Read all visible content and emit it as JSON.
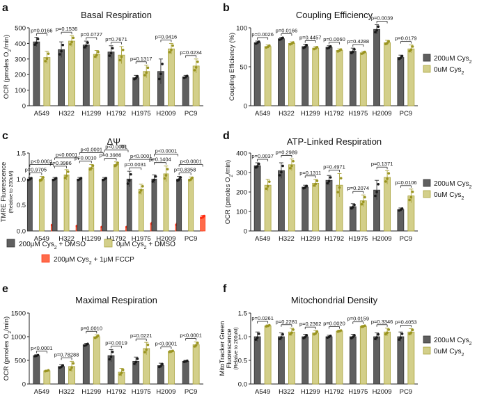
{
  "colors": {
    "cys200": "#5f5f5f",
    "cys0": "#d3cf8a",
    "cys0_stroke": "#a8a23a",
    "fccp": "#ff6b4a",
    "fccp_stroke": "#ff3a1a",
    "dot_cys200": "#1a1a1a",
    "dot_cys0": "#9a9420",
    "dot_fccp": "#ff2a10"
  },
  "categories": [
    "A549",
    "H322",
    "H1299",
    "H1792",
    "H1975",
    "H2009",
    "PC9"
  ],
  "chart_data": [
    {
      "panel": "a",
      "type": "bar",
      "title": "Basal Respiration",
      "ylabel_parts": [
        "OCR (pmoles O",
        "2",
        "/min)"
      ],
      "ylim": [
        0,
        500
      ],
      "yticks": [
        0,
        100,
        200,
        300,
        400,
        500
      ],
      "legend": false,
      "series": [
        {
          "name": "200μM Cys2",
          "values": [
            410,
            360,
            390,
            345,
            180,
            220,
            185
          ],
          "err": [
            30,
            50,
            25,
            40,
            15,
            80,
            10
          ]
        },
        {
          "name": "0μM Cys2",
          "values": [
            310,
            415,
            330,
            325,
            220,
            365,
            255
          ],
          "err": [
            40,
            35,
            25,
            55,
            40,
            35,
            45
          ]
        }
      ],
      "pvalues": [
        "p=0.0166",
        "p=0.1536",
        "p=0.0727",
        "p=0.7671",
        "p=0.1317",
        "p=0.0416",
        "p=0.0234"
      ]
    },
    {
      "panel": "b",
      "type": "bar",
      "title": "Coupling Efficiency",
      "ylabel_parts": [
        "Coupling Efficiency (%)"
      ],
      "ylim": [
        0,
        100
      ],
      "yticks": [
        0,
        50,
        100
      ],
      "legend": true,
      "series": [
        {
          "name": "200μM Cys2",
          "values": [
            81,
            86,
            76,
            75,
            70,
            98,
            62
          ],
          "err": [
            2,
            2,
            3,
            2,
            4,
            6,
            3
          ]
        },
        {
          "name": "0μM Cys2",
          "values": [
            76,
            80,
            74,
            71,
            68,
            81,
            73
          ],
          "err": [
            2,
            2,
            2,
            2,
            2,
            3,
            5
          ]
        }
      ],
      "pvalues": [
        "p=0.0026",
        "p=0.0166",
        "p=0.4457",
        "p=0.0060",
        "p=0.4288",
        "p=0.0039",
        "p=0.0179"
      ]
    },
    {
      "panel": "c",
      "type": "bar",
      "title": "ΔΨ",
      "title_sub": "m",
      "ylabel_parts": [
        "TMRE Fluorescence"
      ],
      "ylabel2": "(Relative to 200uM)",
      "ylim": [
        0,
        1.5
      ],
      "yticks": [
        0.0,
        0.5,
        1.0,
        1.5
      ],
      "legend": false,
      "series": [
        {
          "name": "200μM Cys2 + DMSO",
          "values": [
            1.0,
            1.0,
            1.0,
            1.0,
            1.0,
            1.0,
            1.0
          ],
          "err": [
            0.03,
            0.03,
            0.03,
            0.03,
            0.15,
            0.08,
            0.05
          ]
        },
        {
          "name": "0μM Cys2 + DMSO",
          "values": [
            1.0,
            1.08,
            1.22,
            1.28,
            0.8,
            1.1,
            1.0
          ],
          "err": [
            0.05,
            0.1,
            0.06,
            0.05,
            0.1,
            0.15,
            0.04
          ]
        },
        {
          "name": "200μM Cys2 + 1μM FCCP",
          "values": [
            0.12,
            0.1,
            0.08,
            0.08,
            0.15,
            0.13,
            0.27
          ],
          "err": [
            0.01,
            0.01,
            0.01,
            0.01,
            0.02,
            0.02,
            0.03
          ]
        }
      ],
      "pvalues_top": [
        "p<0.0001",
        "p<0.0001",
        "p<0.0001",
        "p<0.0001",
        "p<0.0001",
        "p<0.0001",
        "p<0.0001"
      ],
      "pvalues_bottom": [
        "p=0.9705",
        "p=0.3986",
        "p=0.0010",
        "p=0.3986",
        "p=0.0031",
        "p=0.1404",
        "p=0.8358"
      ]
    },
    {
      "panel": "d",
      "type": "bar",
      "title": "ATP-Linked Respiration",
      "ylabel_parts": [
        "OCR (pmoles O",
        "2",
        "/min)"
      ],
      "ylim": [
        0,
        400
      ],
      "yticks": [
        0,
        100,
        200,
        300,
        400
      ],
      "legend": true,
      "series": [
        {
          "name": "200μM Cys2",
          "values": [
            335,
            310,
            225,
            260,
            125,
            210,
            110
          ],
          "err": [
            15,
            40,
            10,
            25,
            15,
            50,
            8
          ]
        },
        {
          "name": "0μM Cys2",
          "values": [
            235,
            340,
            245,
            235,
            155,
            275,
            180
          ],
          "err": [
            30,
            30,
            20,
            60,
            30,
            35,
            35
          ]
        }
      ],
      "pvalues": [
        "p=0.0037",
        "p=0.2989",
        "p=0.1311",
        "p=0.4971",
        "p=0.2074",
        "p=0.1371",
        "p=0.0106"
      ]
    },
    {
      "panel": "e",
      "type": "bar",
      "title": "Maximal Respiration",
      "ylabel_parts": [
        "OCR (pmoles O",
        "2",
        "/min)"
      ],
      "ylim": [
        0,
        1500
      ],
      "yticks": [
        0,
        500,
        1000,
        1500
      ],
      "legend": false,
      "series": [
        {
          "name": "200μM Cys2",
          "values": [
            600,
            370,
            830,
            600,
            480,
            390,
            480
          ],
          "err": [
            20,
            40,
            30,
            130,
            90,
            50,
            20
          ]
        },
        {
          "name": "0μM Cys2",
          "values": [
            280,
            370,
            1000,
            250,
            750,
            690,
            830
          ],
          "err": [
            15,
            110,
            40,
            80,
            130,
            20,
            60
          ]
        }
      ],
      "pvalues": [
        "p<0.0001",
        "p=0.78288",
        "p=0.0010",
        "p=0.0019",
        "p=0.0221",
        "p<0.0001",
        "p<0.0001"
      ]
    },
    {
      "panel": "f",
      "type": "bar",
      "title": "Mitochondrial Density",
      "ylabel_parts": [
        "MitoTracker Green",
        "Fluorescence"
      ],
      "ylabel2": "(Relative to 200uM)",
      "ylim": [
        0,
        1.5
      ],
      "yticks": [
        0.0,
        0.5,
        1.0,
        1.5
      ],
      "legend": true,
      "series": [
        {
          "name": "200μM Cys2",
          "values": [
            1.0,
            1.0,
            1.0,
            1.0,
            1.0,
            1.0,
            1.0
          ],
          "err": [
            0.1,
            0.08,
            0.05,
            0.03,
            0.05,
            0.08,
            0.1
          ]
        },
        {
          "name": "0μM Cys2",
          "values": [
            1.23,
            1.1,
            1.08,
            1.12,
            1.22,
            1.1,
            1.1
          ],
          "err": [
            0.02,
            0.08,
            0.05,
            0.02,
            0.02,
            0.08,
            0.07
          ]
        }
      ],
      "pvalues": [
        "p=0.0261",
        "p=0.2281",
        "p=0.2362",
        "p=0.0020",
        "p=0.0159",
        "p=0.3346",
        "p=0.4053"
      ]
    }
  ],
  "legend_c": [
    {
      "label_parts": [
        "200μM Cys",
        "2",
        " + DMSO"
      ],
      "key": "cys200"
    },
    {
      "label_parts": [
        "0μM Cys",
        "2",
        " + DMSO"
      ],
      "key": "cys0"
    },
    {
      "label_parts": [
        "200μM Cys",
        "2",
        " + 1μM FCCP"
      ],
      "key": "fccp"
    }
  ],
  "legend_side": [
    {
      "label_parts": [
        "200uM Cys",
        "2"
      ],
      "key": "cys200"
    },
    {
      "label_parts": [
        "0uM Cys",
        "2"
      ],
      "key": "cys0"
    }
  ]
}
